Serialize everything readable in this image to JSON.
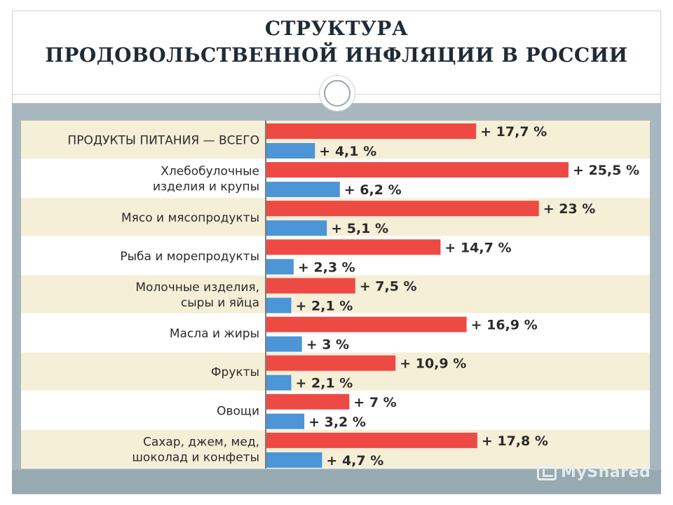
{
  "slide": {
    "title_line1": "СТРУКТУРА",
    "title_line2": "ПРОДОВОЛЬСТВЕННОЙ ИНФЛЯЦИИ В РОССИИ",
    "watermark": "MyShared"
  },
  "colors": {
    "series1": "#ee4a44",
    "series2": "#4c95d6",
    "row_shaded": "#f5efd7",
    "row_plain": "#ffffff"
  },
  "chart_data": {
    "type": "bar",
    "orientation": "horizontal",
    "categories": [
      [
        "ПРОДУКТЫ ПИТАНИЯ — ВСЕГО"
      ],
      [
        "Хлебобулочные",
        "изделия и крупы"
      ],
      [
        "Мясо и мясопродукты"
      ],
      [
        "Рыба и морепродукты"
      ],
      [
        "Молочные изделия,",
        "сыры и яйца"
      ],
      [
        "Масла и жиры"
      ],
      [
        "Фрукты"
      ],
      [
        "Овощи"
      ],
      [
        "Сахар, джем, мед,",
        "шоколад и конфеты"
      ]
    ],
    "series": [
      {
        "values": [
          17.7,
          25.5,
          23,
          14.7,
          7.5,
          16.9,
          10.9,
          7,
          17.8
        ],
        "labels": [
          "+ 17,7 %",
          "+ 25,5 %",
          "+ 23 %",
          "+ 14,7 %",
          "+ 7,5 %",
          "+ 16,9 %",
          "+ 10,9 %",
          "+ 7 %",
          "+ 17,8 %"
        ]
      },
      {
        "values": [
          4.1,
          6.2,
          5.1,
          2.3,
          2.1,
          3,
          2.1,
          3.2,
          4.7
        ],
        "labels": [
          "+ 4,1 %",
          "+ 6,2 %",
          "+ 5,1 %",
          "+ 2,3 %",
          "+ 2,1 %",
          "+ 3 %",
          "+ 2,1 %",
          "+ 3,2 %",
          "+ 4,7 %"
        ]
      }
    ],
    "xlim": [
      0,
      30
    ],
    "grid": false,
    "legend": "none"
  }
}
